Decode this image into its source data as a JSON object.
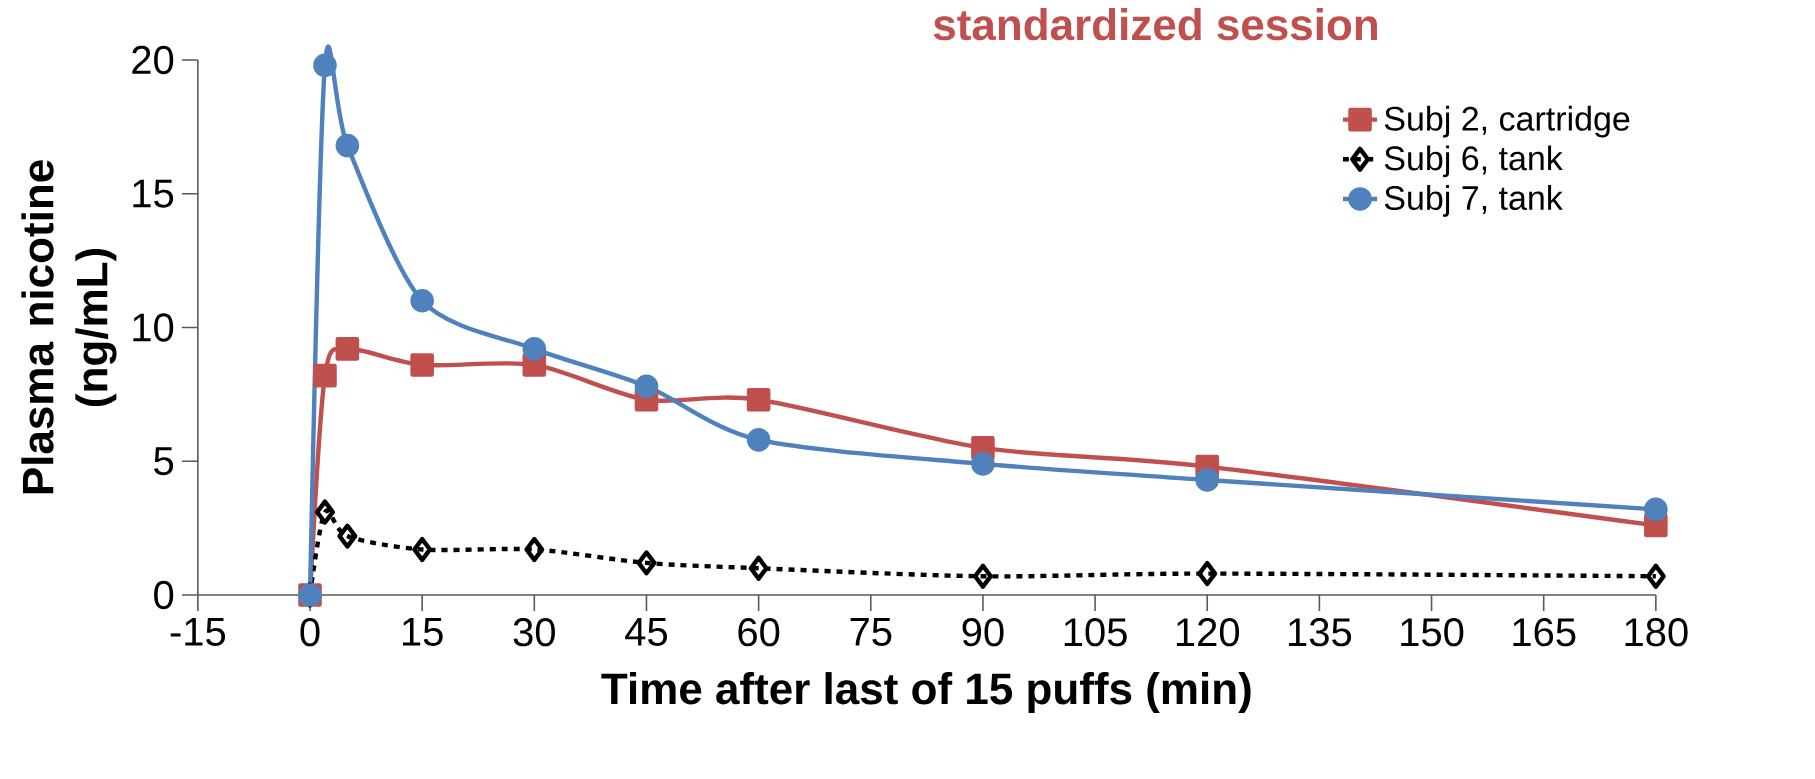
{
  "chart_data": {
    "type": "line",
    "title": "standardized session",
    "xlabel": "Time after last of 15 puffs (min)",
    "ylabel": "Plasma nicotine (ng/mL)",
    "xlim": [
      -15,
      180
    ],
    "ylim": [
      0,
      20
    ],
    "xticks": [
      -15,
      0,
      15,
      30,
      45,
      60,
      75,
      90,
      105,
      120,
      135,
      150,
      165,
      180
    ],
    "yticks": [
      0,
      5,
      10,
      15,
      20
    ],
    "x": [
      0,
      2,
      5,
      15,
      30,
      45,
      60,
      90,
      120,
      180
    ],
    "legend": "top right",
    "grid": false,
    "series": [
      {
        "name": "Subj 2, cartridge",
        "color": "#c0504d",
        "marker": "square",
        "line_style": "solid",
        "values": [
          0,
          8.2,
          9.2,
          8.6,
          8.6,
          7.3,
          7.3,
          5.5,
          4.8,
          2.6
        ]
      },
      {
        "name": "Subj 6, tank",
        "color": "#000000",
        "marker": "diamond",
        "line_style": "dashed",
        "values": [
          0,
          3.1,
          2.2,
          1.7,
          1.7,
          1.2,
          1.0,
          0.7,
          0.8,
          0.7
        ]
      },
      {
        "name": "Subj 7, tank",
        "color": "#4f81bd",
        "marker": "circle",
        "line_style": "solid",
        "values": [
          0,
          19.8,
          16.8,
          11.0,
          9.2,
          7.8,
          5.8,
          4.9,
          4.3,
          3.2
        ]
      }
    ]
  }
}
